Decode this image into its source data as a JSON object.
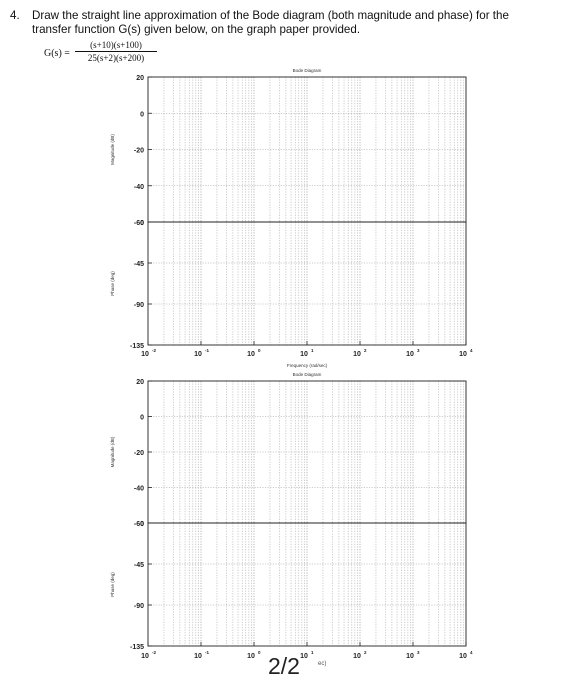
{
  "question": {
    "number": "4.",
    "line1": "Draw the straight line approximation of the Bode diagram (both magnitude and phase) for the",
    "line2": "transfer function G(s) given below, on the graph paper provided."
  },
  "transfer_function": {
    "lhs": "G(s) =",
    "numerator": "(s+10)(s+100)",
    "denominator": "25(s+2)(s+200)"
  },
  "page_indicator": "2/2",
  "page_hint": "ec)",
  "chart_data": [
    {
      "type": "line",
      "title": "Bode Diagram",
      "xlabel": "",
      "ylabel": "Magnitude (dB)",
      "x_scale": "log",
      "xlim": [
        0.01,
        10000
      ],
      "ylim": [
        -60,
        20
      ],
      "yticks": [
        "20",
        "0",
        "-20",
        "-40",
        "-60"
      ],
      "xticks": [],
      "grid": true,
      "series": []
    },
    {
      "type": "line",
      "title": "",
      "xlabel": "Frequency (rad/sec)",
      "ylabel": "Phase (deg)",
      "x_scale": "log",
      "xlim": [
        0.01,
        10000
      ],
      "ylim": [
        -135,
        0
      ],
      "yticks": [
        "0",
        "-45",
        "-90",
        "-135"
      ],
      "xticks": [
        "10-2",
        "10-1",
        "100",
        "101",
        "102",
        "103",
        "104"
      ],
      "grid": true,
      "series": []
    },
    {
      "type": "line",
      "title": "Bode Diagram",
      "xlabel": "",
      "ylabel": "Magnitude (dB)",
      "x_scale": "log",
      "xlim": [
        0.01,
        10000
      ],
      "ylim": [
        -60,
        20
      ],
      "yticks": [
        "20",
        "0",
        "-20",
        "-40",
        "-60"
      ],
      "xticks": [],
      "grid": true,
      "series": []
    },
    {
      "type": "line",
      "title": "",
      "xlabel": "",
      "ylabel": "Phase (deg)",
      "x_scale": "log",
      "xlim": [
        0.01,
        10000
      ],
      "ylim": [
        -135,
        0
      ],
      "yticks": [
        "0",
        "-45",
        "-90",
        "-135"
      ],
      "xticks": [
        "10-2",
        "10-1",
        "100",
        "101",
        "102",
        "103",
        "104"
      ],
      "grid": true,
      "series": []
    }
  ]
}
